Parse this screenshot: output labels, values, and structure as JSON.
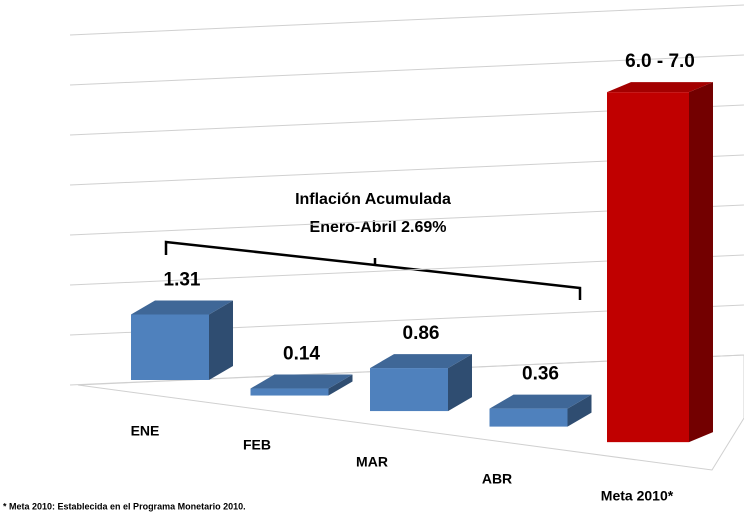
{
  "chart_data": {
    "type": "bar3d",
    "categories": [
      "ENE",
      "FEB",
      "MAR",
      "ABR",
      "Meta 2010*"
    ],
    "values": [
      1.31,
      0.14,
      0.86,
      0.36,
      7.0
    ],
    "value_labels": [
      "1.31",
      "0.14",
      "0.86",
      "0.36",
      "6.0 - 7.0"
    ],
    "colors": [
      "#4f81bd",
      "#4f81bd",
      "#4f81bd",
      "#4f81bd",
      "#c00000"
    ],
    "ylim": [
      0,
      7
    ],
    "yticks": [
      0,
      1,
      2,
      3,
      4,
      5,
      6,
      7
    ],
    "grid": true,
    "annotation": [
      "Inflación Acumulada",
      "Enero-Abril 2.69%"
    ],
    "footnote": "* Meta 2010: Establecida  en el Programa Monetario 2010."
  }
}
